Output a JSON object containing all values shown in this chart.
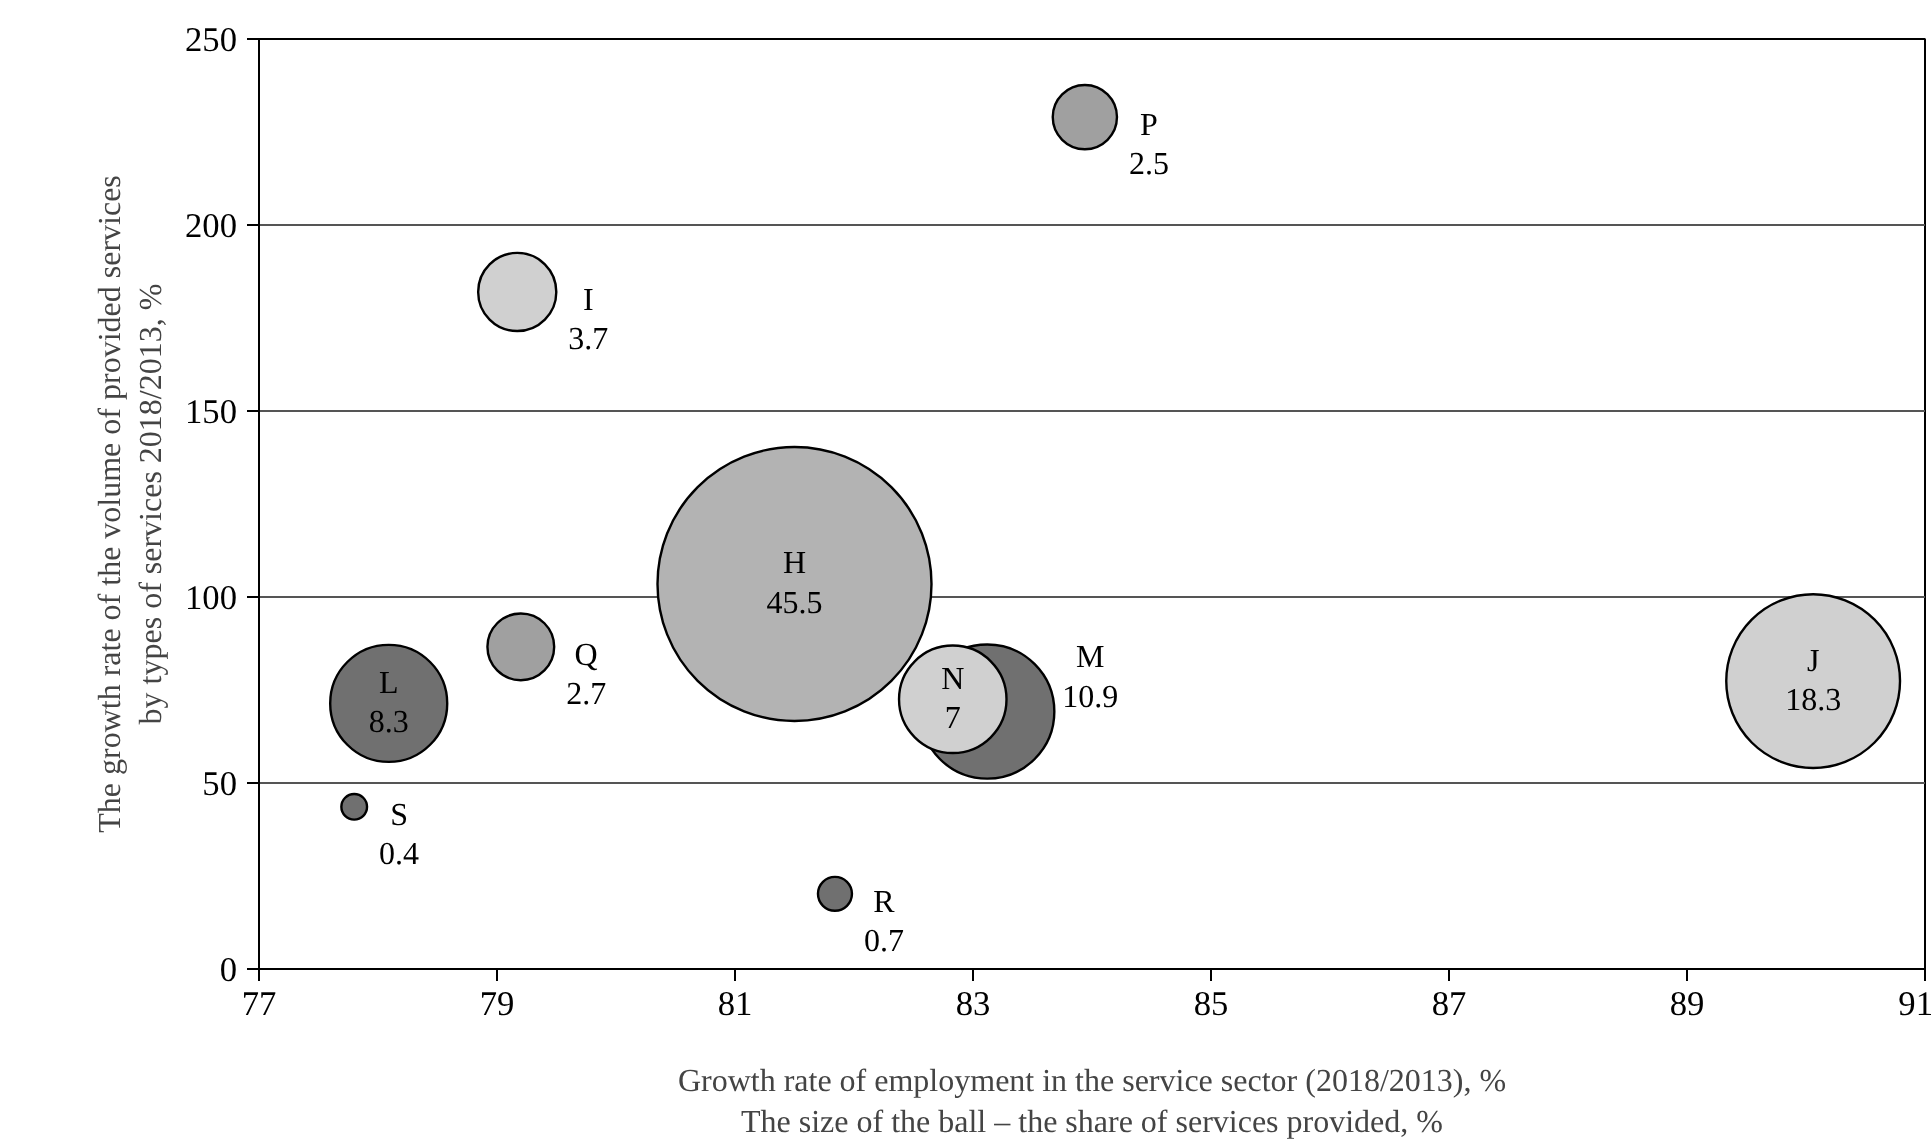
{
  "chart_data": {
    "type": "bubble",
    "xlabel": "Growth rate of employment in the service sector (2018/2013), %\nThe size of the ball – the share of services provided, %",
    "ylabel": "The growth rate of the volume of provided services\nby types of services 2018/2013, %",
    "xlim": [
      77,
      91
    ],
    "xticks": [
      77,
      79,
      81,
      83,
      85,
      87,
      89,
      91
    ],
    "ylim": [
      0,
      250
    ],
    "yticks": [
      0,
      50,
      100,
      150,
      200,
      250
    ],
    "grid": "y",
    "series": [
      {
        "name": "P",
        "color": "#a0a0a0",
        "x": [
          83.94
        ],
        "values": [
          229
        ],
        "sizes": [
          2.5
        ],
        "value_labels": [
          "2.5"
        ]
      },
      {
        "name": "I",
        "color": "#d0d0d0",
        "x": [
          79.17
        ],
        "values": [
          182
        ],
        "sizes": [
          3.7
        ],
        "value_labels": [
          "3.7"
        ]
      },
      {
        "name": "H",
        "color": "#b3b3b3",
        "x": [
          81.5
        ],
        "values": [
          103.5
        ],
        "sizes": [
          45.5
        ],
        "value_labels": [
          "45.5"
        ]
      },
      {
        "name": "L",
        "color": "#707070",
        "x": [
          78.09
        ],
        "values": [
          71.4
        ],
        "sizes": [
          8.3
        ],
        "value_labels": [
          "8.3"
        ]
      },
      {
        "name": "Q",
        "color": "#a0a0a0",
        "x": [
          79.2
        ],
        "values": [
          86.6
        ],
        "sizes": [
          2.7
        ],
        "value_labels": [
          "2.7"
        ]
      },
      {
        "name": "S",
        "color": "#707070",
        "x": [
          77.8
        ],
        "values": [
          43.6
        ],
        "sizes": [
          0.4
        ],
        "value_labels": [
          "0.4"
        ]
      },
      {
        "name": "R",
        "color": "#707070",
        "x": [
          81.84
        ],
        "values": [
          20.2
        ],
        "sizes": [
          0.7
        ],
        "value_labels": [
          "0.7"
        ]
      },
      {
        "name": "M",
        "color": "#707070",
        "x": [
          83.12
        ],
        "values": [
          69.2
        ],
        "sizes": [
          10.9
        ],
        "value_labels": [
          "10.9"
        ]
      },
      {
        "name": "N",
        "color": "#d0d0d0",
        "x": [
          82.83
        ],
        "values": [
          72.5
        ],
        "sizes": [
          7
        ],
        "value_labels": [
          "7"
        ]
      },
      {
        "name": "J",
        "color": "#d0d0d0",
        "x": [
          90.06
        ],
        "values": [
          77.4
        ],
        "sizes": [
          18.3
        ],
        "value_labels": [
          "18.3"
        ]
      }
    ]
  }
}
